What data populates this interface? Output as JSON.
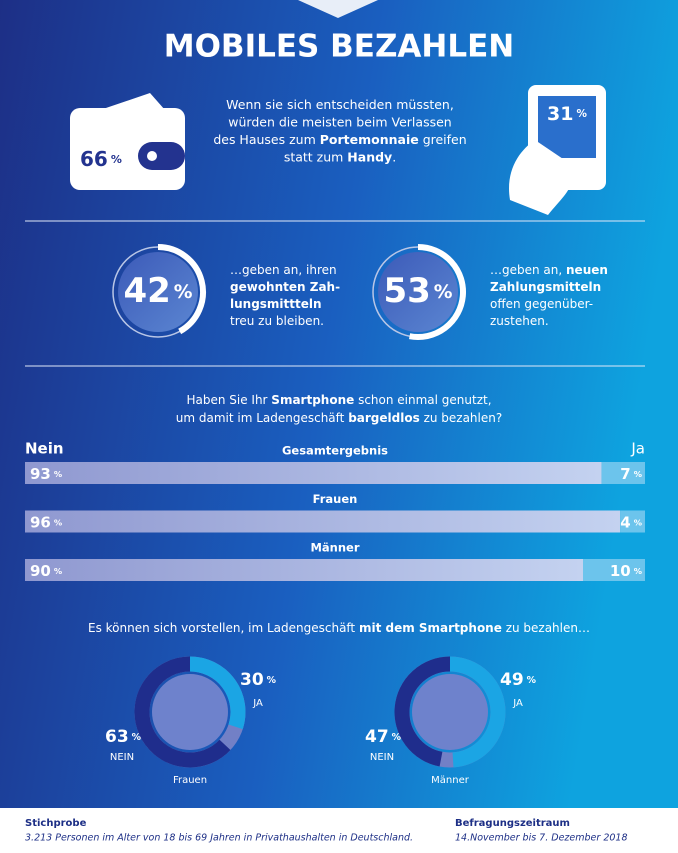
{
  "title": "MOBILES BEZAHLEN",
  "unit": "%",
  "wallet": {
    "value": 66
  },
  "phone": {
    "value": 31
  },
  "intro": [
    [
      {
        "t": "Wenn sie sich entscheiden müssten,"
      }
    ],
    [
      {
        "t": "würden die meisten beim Verlassen"
      }
    ],
    [
      {
        "t": "des Hauses zum "
      },
      {
        "t": "Portemonnaie",
        "b": true
      },
      {
        "t": " greifen"
      }
    ],
    [
      {
        "t": "statt zum "
      },
      {
        "t": "Handy",
        "b": true
      },
      {
        "t": "."
      }
    ]
  ],
  "rings": [
    {
      "value": 42,
      "text": [
        [
          {
            "t": "…geben an, ihren"
          }
        ],
        [
          {
            "t": "gewohnten Zah-",
            "b": true
          }
        ],
        [
          {
            "t": "lungsmittteln",
            "b": true
          }
        ],
        [
          {
            "t": "treu zu bleiben."
          }
        ]
      ]
    },
    {
      "value": 53,
      "text": [
        [
          {
            "t": "…geben an, "
          },
          {
            "t": "neuen",
            "b": true
          }
        ],
        [
          {
            "t": "Zahlungsmitteln",
            "b": true
          }
        ],
        [
          {
            "t": "offen gegenüber-"
          }
        ],
        [
          {
            "t": "zustehen."
          }
        ]
      ]
    }
  ],
  "question1": [
    [
      {
        "t": "Haben Sie Ihr "
      },
      {
        "t": "Smartphone",
        "b": true
      },
      {
        "t": " schon einmal genutzt,"
      }
    ],
    [
      {
        "t": "um damit im Ladengeschäft "
      },
      {
        "t": "bargeldlos",
        "b": true
      },
      {
        "t": " zu bezahlen?"
      }
    ]
  ],
  "no_label": "Nein",
  "yes_label": "Ja",
  "bars": [
    {
      "group": "Gesamtergebnis",
      "no": 93,
      "yes": 7
    },
    {
      "group": "Frauen",
      "no": 96,
      "yes": 4
    },
    {
      "group": "Männer",
      "no": 90,
      "yes": 10
    }
  ],
  "question2": [
    [
      {
        "t": "Es können sich vorstellen, im Ladengeschäft "
      },
      {
        "t": "mit dem Smartphone",
        "b": true
      },
      {
        "t": " zu bezahlen…"
      }
    ]
  ],
  "donuts": [
    {
      "group": "Frauen",
      "yes": 30,
      "yes_label": "JA",
      "no": 63,
      "no_label": "NEIN"
    },
    {
      "group": "Männer",
      "yes": 49,
      "yes_label": "JA",
      "no": 47,
      "no_label": "NEIN"
    }
  ],
  "footer": {
    "left_title": "Stichprobe",
    "left_text": "3.213 Personen im Alter von 18 bis 69 Jahren in Privathaushalten in Deutschland.",
    "right_title": "Befragungszeitraum",
    "right_text": "14.November bis 7. Dezember 2018"
  }
}
